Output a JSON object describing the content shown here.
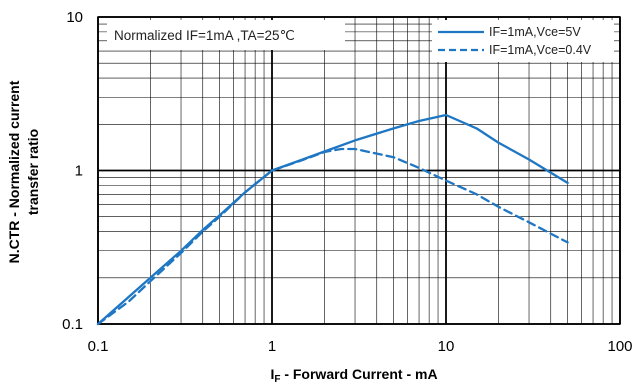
{
  "chart_data": {
    "type": "line",
    "x_scale": "log",
    "y_scale": "log",
    "xlim": [
      0.1,
      100
    ],
    "ylim": [
      0.1,
      10
    ],
    "x_ticks": [
      "0.1",
      "1",
      "10",
      "100"
    ],
    "y_ticks": [
      "0.1",
      "1",
      "10"
    ],
    "ylabel_line1": "N.CTR - Normalized current",
    "ylabel_line2": "transfer ratio",
    "xlabel_main": "I",
    "xlabel_sub": "F",
    "xlabel_rest": " - Forward Current - mA",
    "annotation": "Normalized IF=1mA ,TA=25℃",
    "grid": true,
    "legend_position": "top-right",
    "colors": {
      "series": "#1f77c4",
      "grid": "#000000"
    },
    "series": [
      {
        "name": "IF=1mA,Vce=5V",
        "style": "solid",
        "x": [
          0.1,
          0.15,
          0.2,
          0.3,
          0.4,
          0.5,
          0.7,
          1.0,
          1.5,
          2,
          3,
          5,
          7,
          10,
          15,
          20,
          30,
          50
        ],
        "y": [
          0.1,
          0.15,
          0.2,
          0.3,
          0.41,
          0.51,
          0.72,
          1.0,
          1.18,
          1.33,
          1.57,
          1.88,
          2.1,
          2.3,
          1.88,
          1.52,
          1.18,
          0.83
        ]
      },
      {
        "name": "IF=1mA,Vce=0.4V",
        "style": "dashed",
        "x": [
          0.1,
          0.15,
          0.2,
          0.3,
          0.4,
          0.5,
          0.7,
          1.0,
          1.5,
          2,
          2.5,
          3,
          5,
          7,
          10,
          15,
          20,
          30,
          50
        ],
        "y": [
          0.1,
          0.14,
          0.19,
          0.29,
          0.4,
          0.5,
          0.72,
          1.0,
          1.17,
          1.32,
          1.38,
          1.38,
          1.22,
          1.04,
          0.86,
          0.7,
          0.58,
          0.46,
          0.34
        ]
      }
    ]
  }
}
